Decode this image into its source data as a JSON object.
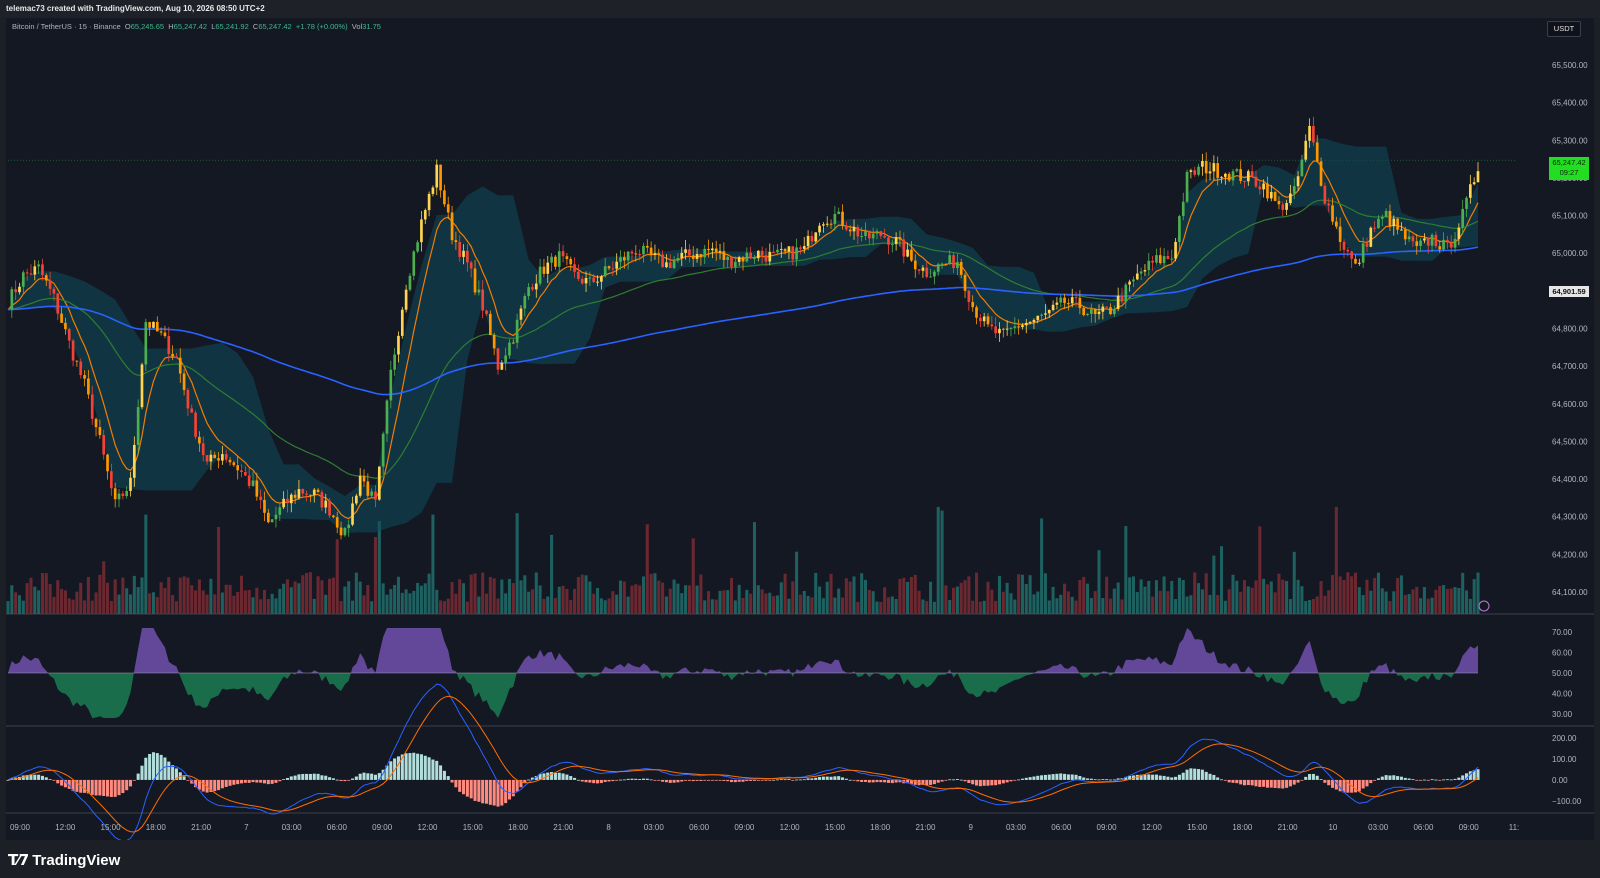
{
  "header": {
    "attribution": "telemac73 created with TradingView.com, Aug 10, 2026 08:50 UTC+2"
  },
  "legend": {
    "symbol": "Bitcoin / TetherUS · 15 · Binance",
    "open_label": "O",
    "open": "65,245.65",
    "high_label": "H",
    "high": "65,247.42",
    "low_label": "L",
    "low": "65,241.92",
    "close_label": "C",
    "close": "65,247.42",
    "change": "+1.78 (+0.00%)",
    "vol_label": "Vol",
    "vol": "31.75"
  },
  "price_scale": {
    "unit": "USDT",
    "ticks": [
      "65,500.00",
      "65,400.00",
      "65,300.00",
      "65,200.00",
      "65,100.00",
      "65,000.00",
      "64,900.00",
      "64,800.00",
      "64,700.00",
      "64,600.00",
      "64,500.00",
      "64,400.00",
      "64,300.00",
      "64,200.00",
      "64,100.00"
    ],
    "last_price": "65,247.42",
    "countdown": "09:27",
    "ref_price": "64,901.59"
  },
  "rsi_scale": {
    "ticks": [
      "70.00",
      "60.00",
      "50.00",
      "40.00",
      "30.00"
    ]
  },
  "macd_scale": {
    "ticks": [
      "200.00",
      "100.00",
      "0.00",
      "−100.00"
    ]
  },
  "time_axis": [
    "09:00",
    "12:00",
    "15:00",
    "18:00",
    "21:00",
    "7",
    "03:00",
    "06:00",
    "09:00",
    "12:00",
    "15:00",
    "18:00",
    "21:00",
    "8",
    "03:00",
    "06:00",
    "09:00",
    "12:00",
    "15:00",
    "18:00",
    "21:00",
    "9",
    "03:00",
    "06:00",
    "09:00",
    "12:00",
    "15:00",
    "18:00",
    "21:00",
    "10",
    "03:00",
    "06:00",
    "09:00",
    "11:"
  ],
  "footer": {
    "logo_mark": "T⁄7",
    "logo_word": "TradingView"
  },
  "colors": {
    "bg": "#141823",
    "up": "#26a69a",
    "down": "#ef5350",
    "cloud": "#0f4c5c",
    "ema_long": "#2962ff",
    "ema_mid": "#2e7d32",
    "ema_fast": "#f57c00",
    "rsi_up": "#7e57c2",
    "rsi_down": "#1b8a5a"
  },
  "chart_data": {
    "type": "candlestick",
    "title": "Bitcoin / TetherUS · 15 · Binance",
    "y_range": [
      64050,
      65550
    ],
    "x_labels": [
      "09:00",
      "12:00",
      "15:00",
      "18:00",
      "21:00",
      "7",
      "03:00",
      "06:00",
      "09:00",
      "12:00",
      "15:00",
      "18:00",
      "21:00",
      "8",
      "03:00",
      "06:00",
      "09:00",
      "12:00",
      "15:00",
      "18:00",
      "21:00",
      "9",
      "03:00",
      "06:00",
      "09:00",
      "12:00",
      "15:00",
      "18:00",
      "21:00",
      "10",
      "03:00",
      "06:00",
      "09:00",
      "11:"
    ],
    "close_path": [
      [
        0,
        64870
      ],
      [
        4,
        64940
      ],
      [
        8,
        64960
      ],
      [
        12,
        64880
      ],
      [
        16,
        64760
      ],
      [
        20,
        64650
      ],
      [
        24,
        64500
      ],
      [
        28,
        64330
      ],
      [
        32,
        64390
      ],
      [
        36,
        64820
      ],
      [
        40,
        64780
      ],
      [
        44,
        64720
      ],
      [
        48,
        64560
      ],
      [
        52,
        64440
      ],
      [
        56,
        64470
      ],
      [
        60,
        64430
      ],
      [
        64,
        64380
      ],
      [
        68,
        64280
      ],
      [
        72,
        64330
      ],
      [
        76,
        64370
      ],
      [
        80,
        64360
      ],
      [
        84,
        64320
      ],
      [
        88,
        64250
      ],
      [
        92,
        64410
      ],
      [
        96,
        64330
      ],
      [
        100,
        64680
      ],
      [
        104,
        64920
      ],
      [
        108,
        65080
      ],
      [
        112,
        65220
      ],
      [
        116,
        65050
      ],
      [
        120,
        64970
      ],
      [
        124,
        64860
      ],
      [
        128,
        64700
      ],
      [
        132,
        64780
      ],
      [
        136,
        64910
      ],
      [
        140,
        64960
      ],
      [
        144,
        64990
      ],
      [
        148,
        64940
      ],
      [
        152,
        64920
      ],
      [
        156,
        64950
      ],
      [
        160,
        64980
      ],
      [
        164,
        65010
      ],
      [
        168,
        64990
      ],
      [
        172,
        64970
      ],
      [
        176,
        64990
      ],
      [
        180,
        65000
      ],
      [
        184,
        65010
      ],
      [
        188,
        64980
      ],
      [
        192,
        64990
      ],
      [
        196,
        65000
      ],
      [
        200,
        64990
      ],
      [
        204,
        65000
      ],
      [
        208,
        65010
      ],
      [
        212,
        65090
      ],
      [
        216,
        65100
      ],
      [
        220,
        65070
      ],
      [
        224,
        65040
      ],
      [
        228,
        65050
      ],
      [
        232,
        65030
      ],
      [
        236,
        64980
      ],
      [
        240,
        64950
      ],
      [
        244,
        64970
      ],
      [
        248,
        64980
      ],
      [
        252,
        64860
      ],
      [
        256,
        64800
      ],
      [
        260,
        64780
      ],
      [
        264,
        64810
      ],
      [
        268,
        64820
      ],
      [
        272,
        64840
      ],
      [
        276,
        64870
      ],
      [
        280,
        64860
      ],
      [
        284,
        64830
      ],
      [
        288,
        64850
      ],
      [
        292,
        64900
      ],
      [
        296,
        64950
      ],
      [
        300,
        64980
      ],
      [
        304,
        64990
      ],
      [
        308,
        65200
      ],
      [
        312,
        65230
      ],
      [
        316,
        65220
      ],
      [
        320,
        65210
      ],
      [
        324,
        65200
      ],
      [
        328,
        65180
      ],
      [
        332,
        65120
      ],
      [
        336,
        65160
      ],
      [
        340,
        65330
      ],
      [
        344,
        65150
      ],
      [
        348,
        65040
      ],
      [
        352,
        64960
      ],
      [
        356,
        65060
      ],
      [
        360,
        65100
      ],
      [
        364,
        65050
      ],
      [
        368,
        65010
      ],
      [
        372,
        65040
      ],
      [
        376,
        65010
      ],
      [
        380,
        65100
      ],
      [
        384,
        65230
      ]
    ],
    "overlays": [
      {
        "name": "EMA fast",
        "color": "#f57c00"
      },
      {
        "name": "EMA mid",
        "color": "#2e7d32"
      },
      {
        "name": "EMA long",
        "color": "#2962ff"
      }
    ],
    "volume_y_range": [
      0,
      120
    ],
    "rsi": {
      "levels": [
        30,
        50,
        70
      ],
      "y_range": [
        25,
        75
      ]
    },
    "macd": {
      "y_range": [
        -130,
        220
      ],
      "zero": 0
    }
  }
}
